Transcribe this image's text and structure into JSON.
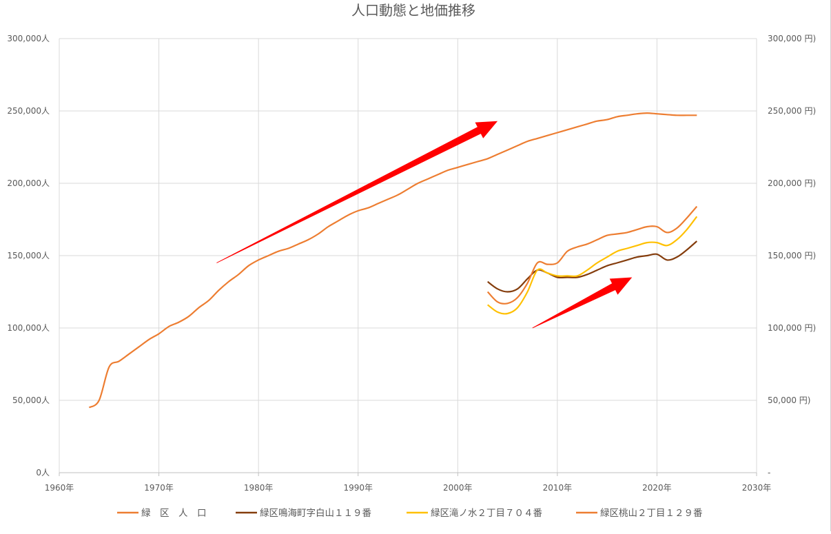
{
  "chart_data": {
    "type": "line",
    "title": "人口動態と地価推移",
    "xlabel": "",
    "ylabel_left": "",
    "ylabel_right": "",
    "x_ticks": [
      "1960年",
      "1970年",
      "1980年",
      "1990年",
      "2000年",
      "2010年",
      "2020年",
      "2030年"
    ],
    "x_tick_values": [
      1960,
      1970,
      1980,
      1990,
      2000,
      2010,
      2020,
      2030
    ],
    "xlim": [
      1960,
      2030
    ],
    "ylim_left": [
      0,
      300000
    ],
    "ylim_right": [
      0,
      300000
    ],
    "y_ticks_left": [
      "0人",
      "50,000人",
      "100,000人",
      "150,000人",
      "200,000人",
      "250,000人",
      "300,000人"
    ],
    "y_ticks_right": [
      "-",
      "50,000 円)",
      "100,000 円)",
      "150,000 円)",
      "200,000 円)",
      "250,000 円)",
      "300,000 円)"
    ],
    "y_tick_values": [
      0,
      50000,
      100000,
      150000,
      200000,
      250000,
      300000
    ],
    "grid": true,
    "legend_position": "bottom",
    "series": [
      {
        "name": "緑　区　人　口",
        "axis": "left",
        "color": "#ED7D31",
        "x": [
          1963,
          1964,
          1965,
          1966,
          1967,
          1968,
          1969,
          1970,
          1971,
          1972,
          1973,
          1974,
          1975,
          1976,
          1977,
          1978,
          1979,
          1980,
          1981,
          1982,
          1983,
          1984,
          1985,
          1986,
          1987,
          1988,
          1989,
          1990,
          1991,
          1992,
          1993,
          1994,
          1995,
          1996,
          1997,
          1998,
          1999,
          2000,
          2001,
          2002,
          2003,
          2004,
          2005,
          2006,
          2007,
          2008,
          2009,
          2010,
          2011,
          2012,
          2013,
          2014,
          2015,
          2016,
          2017,
          2018,
          2019,
          2020,
          2021,
          2022,
          2023,
          2024
        ],
        "y": [
          45000,
          50000,
          73000,
          77000,
          82000,
          87000,
          92000,
          96000,
          101000,
          104000,
          108000,
          114000,
          119000,
          126000,
          132000,
          137000,
          143000,
          147000,
          150000,
          153000,
          155000,
          158000,
          161000,
          165000,
          170000,
          174000,
          178000,
          181000,
          183000,
          186000,
          189000,
          192000,
          196000,
          200000,
          203000,
          206000,
          209000,
          211000,
          213000,
          215000,
          217000,
          220000,
          223000,
          226000,
          229000,
          231000,
          233000,
          235000,
          237000,
          239000,
          241000,
          243000,
          244000,
          246000,
          247000,
          248000,
          248500,
          248000,
          247500,
          247000,
          247000,
          247000
        ]
      },
      {
        "name": "緑区鳴海町字白山１１９番",
        "axis": "right",
        "color": "#843C0C",
        "x": [
          2003,
          2004,
          2005,
          2006,
          2007,
          2008,
          2009,
          2010,
          2011,
          2012,
          2013,
          2014,
          2015,
          2016,
          2017,
          2018,
          2019,
          2020,
          2021,
          2022,
          2023,
          2024
        ],
        "y": [
          132000,
          127000,
          125000,
          127000,
          134000,
          140000,
          138000,
          135000,
          135000,
          135000,
          137000,
          140000,
          143000,
          145000,
          147000,
          149000,
          150000,
          151000,
          147000,
          149000,
          154000,
          160000
        ]
      },
      {
        "name": "緑区滝ノ水２丁目７０４番",
        "axis": "right",
        "color": "#FFC000",
        "x": [
          2003,
          2004,
          2005,
          2006,
          2007,
          2008,
          2009,
          2010,
          2011,
          2012,
          2013,
          2014,
          2015,
          2016,
          2017,
          2018,
          2019,
          2020,
          2021,
          2022,
          2023,
          2024
        ],
        "y": [
          116000,
          111000,
          110000,
          114000,
          125000,
          140000,
          138000,
          136000,
          136000,
          136000,
          140000,
          145000,
          149000,
          153000,
          155000,
          157000,
          159000,
          159000,
          157000,
          161000,
          168000,
          177000
        ]
      },
      {
        "name": "緑区桃山２丁目１２９番",
        "axis": "right",
        "color": "#ED7D31",
        "x": [
          2003,
          2004,
          2005,
          2006,
          2007,
          2008,
          2009,
          2010,
          2011,
          2012,
          2013,
          2014,
          2015,
          2016,
          2017,
          2018,
          2019,
          2020,
          2021,
          2022,
          2023,
          2024
        ],
        "y": [
          125000,
          118000,
          117000,
          121000,
          131000,
          145000,
          144000,
          145000,
          153000,
          156000,
          158000,
          161000,
          164000,
          165000,
          166000,
          168000,
          170000,
          170000,
          166000,
          169000,
          176000,
          184000
        ]
      }
    ],
    "annotations": [
      {
        "type": "arrow",
        "color": "#FF0000",
        "from": [
          1975.8,
          145000
        ],
        "to": [
          2004,
          243000
        ]
      },
      {
        "type": "arrow",
        "color": "#FF0000",
        "from": [
          2007.5,
          100000
        ],
        "to": [
          2017.5,
          135000
        ]
      }
    ]
  }
}
